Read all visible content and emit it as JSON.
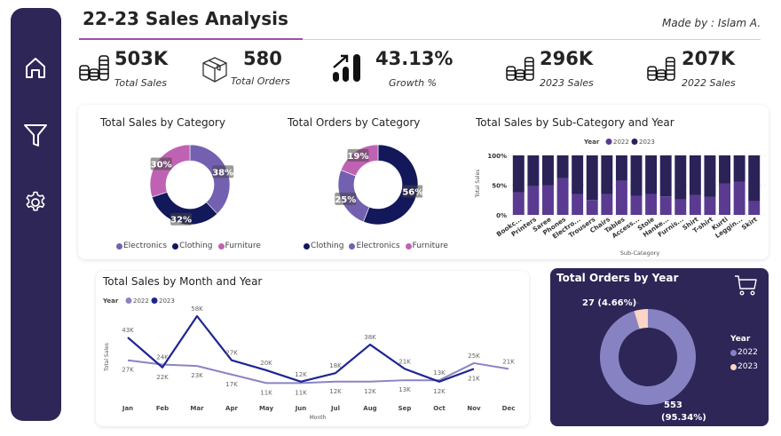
{
  "header": {
    "title": "22-23 Sales Analysis",
    "made_by": "Made by : Islam A."
  },
  "sidebar": {
    "items": [
      {
        "name": "home",
        "icon": "home-icon"
      },
      {
        "name": "filter",
        "icon": "filter-icon"
      },
      {
        "name": "settings",
        "icon": "gear-icon"
      }
    ]
  },
  "kpis": [
    {
      "value": "503K",
      "label": "Total Sales",
      "icon": "coins-icon"
    },
    {
      "value": "580",
      "label": "Total Orders",
      "icon": "box-icon"
    },
    {
      "value": "43.13%",
      "label": "Growth %",
      "icon": "growth-chart-icon"
    },
    {
      "value": "296K",
      "label": "2023 Sales",
      "icon": "coins-icon"
    },
    {
      "value": "207K",
      "label": "2022 Sales",
      "icon": "coins-icon"
    }
  ],
  "colors": {
    "electronics": "#7460b0",
    "clothing": "#12185a",
    "furniture": "#c062b4",
    "y2022_bar": "#5a3b91",
    "y2023_bar": "#2b2257",
    "line_2022": "#8a84c4",
    "line_2023": "#1e2592",
    "donut_2022": "#8783c2",
    "donut_2023": "#fbd5c5",
    "sidebar": "#2d2657",
    "accent": "#a04eae"
  },
  "chart_data": [
    {
      "type": "pie",
      "title": "Total Sales by Category",
      "categories": [
        "Electronics",
        "Clothing",
        "Furniture"
      ],
      "values": [
        38,
        32,
        30
      ],
      "labels": [
        "38%",
        "32%",
        "30%"
      ],
      "legend": "bottom"
    },
    {
      "type": "pie",
      "title": "Total Orders by Category",
      "categories": [
        "Clothing",
        "Electronics",
        "Furniture"
      ],
      "values": [
        56,
        25,
        19
      ],
      "labels": [
        "56%",
        "25%",
        "19%"
      ],
      "legend": "bottom"
    },
    {
      "type": "bar",
      "stacked": "100%",
      "title": "Total Sales by Sub-Category and Year",
      "legend_title": "Year",
      "xlabel": "Sub-Category",
      "ylabel": "Total Sales",
      "yticks": [
        "0%",
        "50%",
        "100%"
      ],
      "categories": [
        "Bookc...",
        "Printers",
        "Saree",
        "Phones",
        "Electro...",
        "Trousers",
        "Chairs",
        "Tables",
        "Access...",
        "Stole",
        "Hanke...",
        "Furnis...",
        "Shirt",
        "T-shirt",
        "Kurti",
        "Leggin...",
        "Skirt"
      ],
      "series": [
        {
          "name": "2022",
          "values": [
            38,
            48,
            50,
            62,
            35,
            25,
            35,
            57,
            32,
            35,
            31,
            26,
            33,
            30,
            53,
            56,
            23
          ]
        },
        {
          "name": "2023",
          "values": [
            62,
            52,
            50,
            38,
            65,
            75,
            65,
            43,
            68,
            65,
            69,
            74,
            67,
            70,
            47,
            44,
            77
          ]
        }
      ],
      "legend": "top"
    },
    {
      "type": "line",
      "title": "Total Sales by Month and Year",
      "legend_title": "Year",
      "xlabel": "Month",
      "ylabel": "Total Sales",
      "categories": [
        "Jan",
        "Feb",
        "Mar",
        "Apr",
        "May",
        "Jun",
        "Jul",
        "Aug",
        "Sep",
        "Oct",
        "Nov",
        "Dec"
      ],
      "series": [
        {
          "name": "2022",
          "values": [
            27,
            24,
            23,
            17,
            11,
            11,
            12,
            12,
            13,
            13,
            25,
            21
          ],
          "labels": [
            "27K",
            "24K",
            "23K",
            "17K",
            "11K",
            "11K",
            "12K",
            "12K",
            "13K",
            "13K",
            "25K",
            "21K"
          ]
        },
        {
          "name": "2023",
          "values": [
            43,
            22,
            58,
            27,
            20,
            12,
            18,
            38,
            21,
            12,
            21,
            null
          ],
          "labels": [
            "43K",
            "22K",
            "58K",
            "27K",
            "20K",
            "12K",
            "18K",
            "38K",
            "21K",
            "12K",
            "21K",
            ""
          ]
        }
      ],
      "legend": "top-left"
    },
    {
      "type": "pie",
      "title": "Total Orders by Year",
      "legend_title": "Year",
      "categories": [
        "2022",
        "2023"
      ],
      "values": [
        553,
        27
      ],
      "labels": [
        "553 (95.34%)",
        "27 (4.66%)"
      ],
      "legend": "right"
    }
  ]
}
